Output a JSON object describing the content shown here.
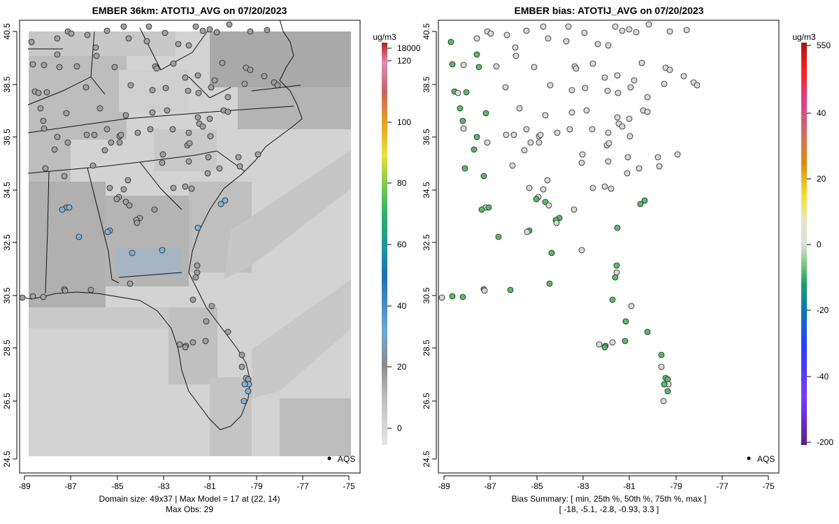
{
  "left_panel": {
    "title": "EMBER 36km: ATOTIJ_AVG on 07/20/2023",
    "footer_line1": "Domain size: 49x37 | Max Model = 17 at (22, 14)",
    "footer_line2": "Max Obs: 29",
    "legend_label": "AQS",
    "colorbar_unit": "ug/m3",
    "colorbar_ticks": [
      "18000",
      "120",
      "100",
      "80",
      "60",
      "40",
      "20",
      "0"
    ]
  },
  "right_panel": {
    "title": "EMBER bias: ATOTIJ_AVG on 07/20/2023",
    "footer_line1": "Bias Summary: [ min, 25th %, 50th %, 75th %, max ]",
    "footer_line2": "[ -18,   -5.1,   -2.8,   -0.93,   3.3 ]",
    "legend_label": "AQS",
    "colorbar_unit": "ug/m3",
    "colorbar_ticks": [
      "550",
      "40",
      "20",
      "0",
      "-20",
      "-40",
      "-200"
    ]
  },
  "x_ticks": [
    "-89",
    "-87",
    "-85",
    "-83",
    "-81",
    "-79",
    "-77",
    "-75"
  ],
  "y_ticks": [
    "40.5",
    "38.5",
    "36.5",
    "34.5",
    "32.5",
    "30.5",
    "28.5",
    "26.5",
    "24.5"
  ],
  "colors": {
    "model_light": "#d3d3d3",
    "model_mid": "#bebebe",
    "model_dark": "#a9a9a9",
    "obs_low": "#a0a0a0",
    "obs_high": "#7fb3d8",
    "bias_neutral": "#d8d8d8",
    "bias_neg": "#5cb86a"
  }
}
